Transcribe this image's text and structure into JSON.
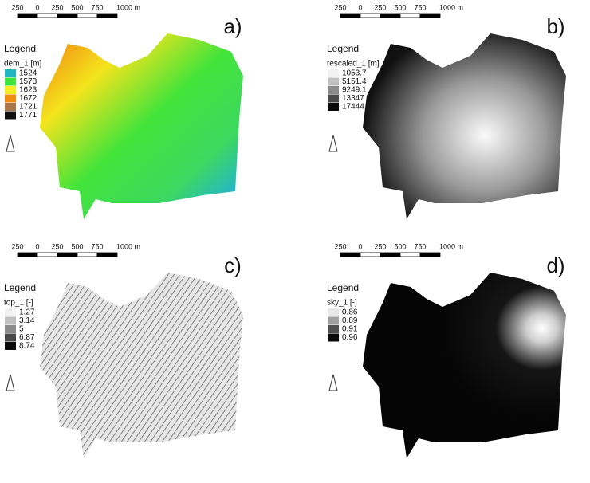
{
  "panels": [
    {
      "label": "a)",
      "scale": [
        "250",
        "0",
        "250",
        "500",
        "750",
        "1000 m"
      ],
      "legend": {
        "title": "Legend",
        "layer": "dem_1 [m]",
        "entries": [
          {
            "label": "1524",
            "color": "#22b5c4"
          },
          {
            "label": "1573",
            "color": "#3ee53a"
          },
          {
            "label": "1623",
            "color": "#f2f020"
          },
          {
            "label": "1672",
            "color": "#f08c10"
          },
          {
            "label": "1721",
            "color": "#a8784a"
          },
          {
            "label": "1771",
            "color": "#111111"
          }
        ]
      }
    },
    {
      "label": "b)",
      "scale": [
        "250",
        "0",
        "250",
        "500",
        "750",
        "1000 m"
      ],
      "legend": {
        "title": "Legend",
        "layer": "rescaled_1 [m]",
        "entries": [
          {
            "label": "1053.7",
            "color": "#f2f2f2"
          },
          {
            "label": "5151.4",
            "color": "#c0c0c0"
          },
          {
            "label": "9249.1",
            "color": "#8a8a8a"
          },
          {
            "label": "13347",
            "color": "#4a4a4a"
          },
          {
            "label": "17444",
            "color": "#0a0a0a"
          }
        ]
      }
    },
    {
      "label": "c)",
      "scale": [
        "250",
        "0",
        "250",
        "500",
        "750",
        "1000 m"
      ],
      "legend": {
        "title": "Legend",
        "layer": "top_1 [-]",
        "entries": [
          {
            "label": "1.27",
            "color": "#f2f2f2"
          },
          {
            "label": "3.14",
            "color": "#c0c0c0"
          },
          {
            "label": "5",
            "color": "#8a8a8a"
          },
          {
            "label": "6.87",
            "color": "#4a4a4a"
          },
          {
            "label": "8.74",
            "color": "#0a0a0a"
          }
        ]
      }
    },
    {
      "label": "d)",
      "scale": [
        "250",
        "0",
        "250",
        "500",
        "750",
        "1000 m"
      ],
      "legend": {
        "title": "Legend",
        "layer": "sky_1 [-]",
        "entries": [
          {
            "label": "0.86",
            "color": "#e8e8e8"
          },
          {
            "label": "0.89",
            "color": "#a0a0a0"
          },
          {
            "label": "0.91",
            "color": "#505050"
          },
          {
            "label": "0.96",
            "color": "#0a0a0a"
          }
        ]
      }
    }
  ]
}
